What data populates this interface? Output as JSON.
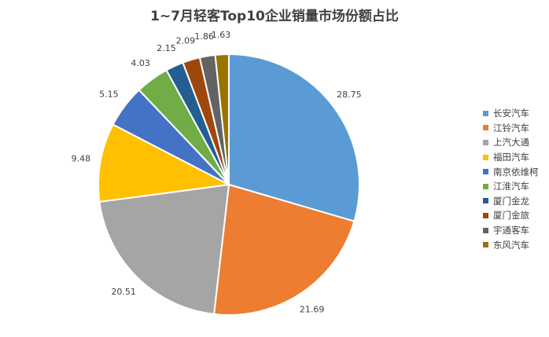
{
  "chart_data": {
    "type": "pie",
    "title": "1~7月轻客Top10企业销量市场份额占比",
    "start_angle_deg": 0,
    "direction": "clockwise",
    "legend_position": "right",
    "categories": [
      "长安汽车",
      "江铃汽车",
      "上汽大通",
      "福田汽车",
      "南京依维柯",
      "江淮汽车",
      "厦门金龙",
      "厦门金旅",
      "宇通客车",
      "东风汽车"
    ],
    "values": [
      28.75,
      21.69,
      20.51,
      9.48,
      5.15,
      4.03,
      2.15,
      2.09,
      1.86,
      1.63
    ],
    "labels": [
      "28.75",
      "21.69",
      "20.51",
      "9.48",
      "5.15",
      "4.03",
      "2.15",
      "2.09",
      "1.86",
      "1.63"
    ],
    "colors": [
      "#5B9BD5",
      "#ED7D31",
      "#A5A5A5",
      "#FFC000",
      "#4472C4",
      "#70AD47",
      "#255E91",
      "#9E480E",
      "#636363",
      "#997300"
    ]
  }
}
